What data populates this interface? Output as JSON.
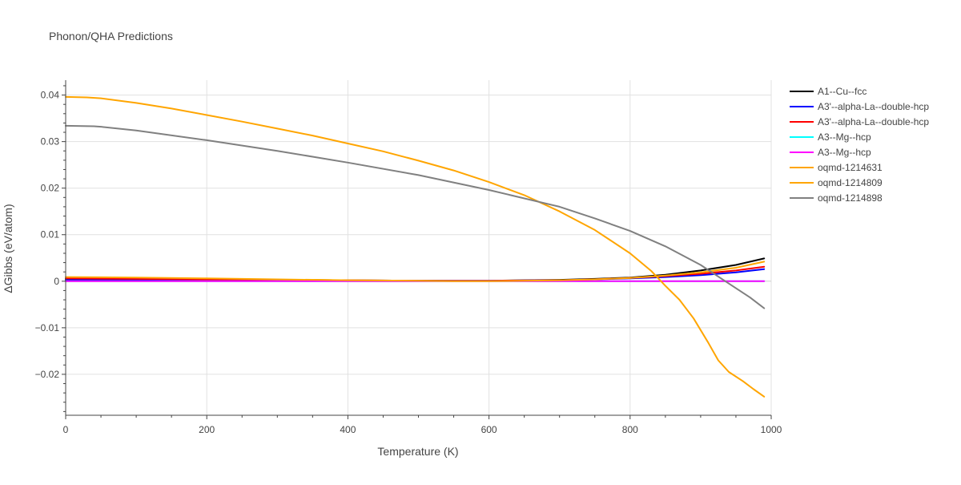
{
  "chart_data": {
    "type": "line",
    "title": "Phonon/QHA Predictions",
    "xlabel": "Temperature (K)",
    "ylabel": "ΔGibbs (eV/atom)",
    "xlim": [
      0,
      1000
    ],
    "ylim": [
      -0.0288,
      0.0432
    ],
    "xticks": [
      0,
      200,
      400,
      600,
      800,
      1000
    ],
    "xtick_labels": [
      "0",
      "200",
      "400",
      "600",
      "800",
      "1000"
    ],
    "yticks": [
      -0.02,
      -0.01,
      0,
      0.01,
      0.02,
      0.03,
      0.04
    ],
    "ytick_labels": [
      "−0.02",
      "−0.01",
      "0",
      "0.01",
      "0.02",
      "0.03",
      "0.04"
    ],
    "grid": true,
    "legend_position": "right",
    "series": [
      {
        "name": "A1--Cu--fcc",
        "color": "#000000",
        "x": [
          0,
          100,
          200,
          300,
          400,
          500,
          600,
          700,
          750,
          800,
          850,
          900,
          950,
          990
        ],
        "y": [
          0.0005,
          0.0005,
          0.0004,
          0.0003,
          0.0002,
          0.0001,
          0.0001,
          0.0003,
          0.0005,
          0.0008,
          0.0014,
          0.0023,
          0.0035,
          0.0049
        ]
      },
      {
        "name": "A3'--alpha-La--double-hcp",
        "color": "#0000ff",
        "x": [
          0,
          100,
          200,
          300,
          400,
          500,
          600,
          700,
          750,
          800,
          850,
          900,
          950,
          990
        ],
        "y": [
          0.0003,
          0.0003,
          0.0002,
          0.0002,
          0.0001,
          0.0001,
          0.0001,
          0.0002,
          0.0004,
          0.0006,
          0.0009,
          0.0013,
          0.0019,
          0.0026
        ]
      },
      {
        "name": "A3'--alpha-La--double-hcp",
        "color": "#ff0000",
        "x": [
          0,
          100,
          200,
          300,
          400,
          500,
          600,
          700,
          750,
          800,
          850,
          900,
          950,
          990
        ],
        "y": [
          0.0006,
          0.0005,
          0.0004,
          0.0003,
          0.0002,
          0.0001,
          0.0001,
          0.0002,
          0.0004,
          0.0007,
          0.0011,
          0.0016,
          0.0023,
          0.0031
        ]
      },
      {
        "name": "A3--Mg--hcp",
        "color": "#00ffff",
        "x": [
          0,
          200,
          400,
          600,
          800,
          990
        ],
        "y": [
          0,
          0,
          0,
          0,
          0,
          0
        ]
      },
      {
        "name": "A3--Mg--hcp",
        "color": "#ff00ff",
        "x": [
          0,
          200,
          400,
          600,
          800,
          990
        ],
        "y": [
          0,
          0,
          0,
          0,
          0,
          0
        ]
      },
      {
        "name": "oqmd-1214631",
        "color": "#ffa500",
        "x": [
          0,
          100,
          200,
          300,
          400,
          500,
          550,
          600,
          700,
          750,
          800,
          850,
          900,
          950,
          990
        ],
        "y": [
          0.0009,
          0.0008,
          0.0006,
          0.0004,
          0.0002,
          0.0001,
          0.0,
          0.0,
          0.0002,
          0.0004,
          0.0007,
          0.0012,
          0.0019,
          0.0029,
          0.0042
        ]
      },
      {
        "name": "oqmd-1214809",
        "color": "#ffa500",
        "x": [
          0,
          30,
          50,
          100,
          150,
          200,
          250,
          300,
          350,
          400,
          450,
          500,
          550,
          600,
          650,
          700,
          750,
          800,
          830,
          850,
          870,
          890,
          910,
          925,
          940,
          960,
          975,
          990
        ],
        "y": [
          0.0396,
          0.0395,
          0.0393,
          0.0383,
          0.0371,
          0.0357,
          0.0343,
          0.0328,
          0.0313,
          0.0296,
          0.0279,
          0.0259,
          0.0238,
          0.0213,
          0.0185,
          0.015,
          0.011,
          0.006,
          0.0022,
          -0.001,
          -0.004,
          -0.008,
          -0.013,
          -0.017,
          -0.0195,
          -0.0215,
          -0.0232,
          -0.0248
        ]
      },
      {
        "name": "oqmd-1214898",
        "color": "#808080",
        "x": [
          0,
          40,
          50,
          100,
          200,
          300,
          400,
          500,
          600,
          700,
          750,
          800,
          850,
          900,
          940,
          970,
          990
        ],
        "y": [
          0.0334,
          0.0333,
          0.0332,
          0.0324,
          0.0303,
          0.028,
          0.0255,
          0.0228,
          0.0196,
          0.016,
          0.0135,
          0.0108,
          0.0075,
          0.0035,
          -0.0005,
          -0.0035,
          -0.0058
        ]
      }
    ]
  }
}
